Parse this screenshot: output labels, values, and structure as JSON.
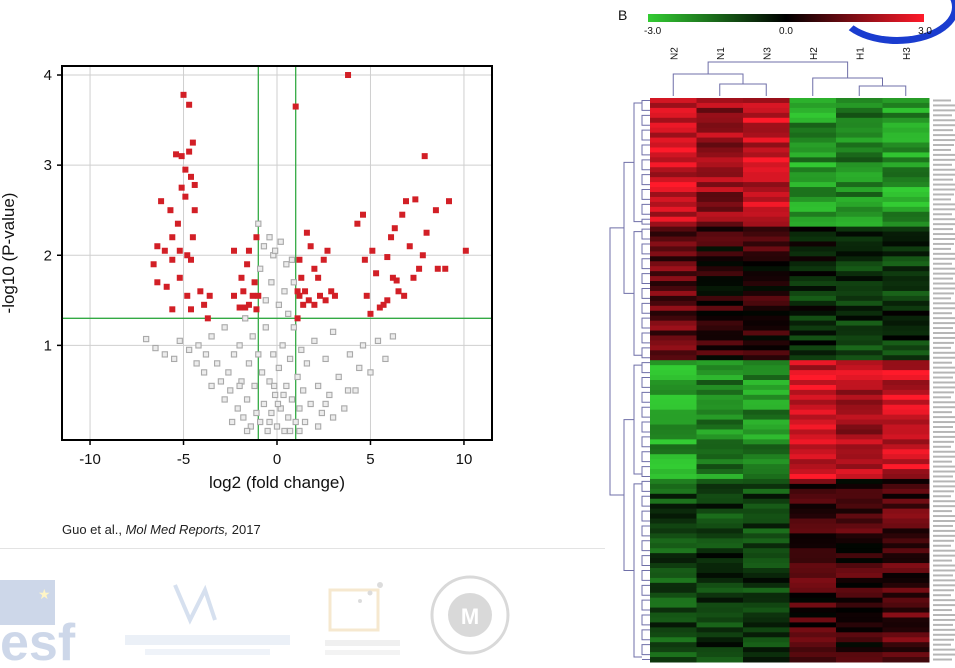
{
  "chart_data": [
    {
      "type": "scatter",
      "title": "",
      "xlabel": "log2 (fold change)",
      "ylabel": "-log10 (P-value)",
      "xlim": [
        -11.5,
        11.5
      ],
      "ylim": [
        -0.05,
        4.1
      ],
      "xticks": [
        -10,
        -5,
        0,
        5,
        10
      ],
      "yticks": [
        1,
        2,
        3,
        4
      ],
      "grid": true,
      "thresholds": {
        "log2fc": [
          -1,
          1
        ],
        "neg_log10_p": 1.3
      },
      "colors": {
        "significant": "#d21f26",
        "not_significant": "#a9a9a9",
        "threshold": "#33aa44"
      },
      "series": [
        {
          "points": [
            [
              -5,
              3.78
            ],
            [
              -4.7,
              3.67
            ],
            [
              -4.5,
              3.25
            ],
            [
              -4.7,
              3.15
            ],
            [
              -5.1,
              3.1
            ],
            [
              -5.4,
              3.12
            ],
            [
              -4.9,
              2.95
            ],
            [
              -4.6,
              2.87
            ],
            [
              -4.4,
              2.78
            ],
            [
              -5.1,
              2.75
            ],
            [
              -6.2,
              2.6
            ],
            [
              -5.7,
              2.5
            ],
            [
              -4.9,
              2.65
            ],
            [
              -4.4,
              2.5
            ],
            [
              -5.3,
              2.35
            ],
            [
              -5.6,
              2.2
            ],
            [
              -4.5,
              2.2
            ],
            [
              -6.4,
              2.1
            ],
            [
              -6.0,
              2.05
            ],
            [
              -5.2,
              2.05
            ],
            [
              -4.8,
              2.0
            ],
            [
              -6.6,
              1.9
            ],
            [
              -5.6,
              1.95
            ],
            [
              -4.6,
              1.95
            ],
            [
              -5.2,
              1.75
            ],
            [
              -6.4,
              1.7
            ],
            [
              -5.9,
              1.65
            ],
            [
              -4.1,
              1.6
            ],
            [
              -4.8,
              1.55
            ],
            [
              -3.6,
              1.55
            ],
            [
              -3.9,
              1.45
            ],
            [
              -5.6,
              1.4
            ],
            [
              -4.6,
              1.4
            ],
            [
              -3.7,
              1.3
            ],
            [
              -2.0,
              1.42
            ],
            [
              -1.7,
              1.42
            ],
            [
              -1.6,
              1.9
            ],
            [
              -1.9,
              1.75
            ],
            [
              -1.3,
              1.55
            ],
            [
              -1.5,
              1.45
            ],
            [
              -1.2,
              1.7
            ],
            [
              -1.1,
              2.2
            ],
            [
              -2.3,
              2.05
            ],
            [
              -1.5,
              2.05
            ],
            [
              -1.8,
              1.6
            ],
            [
              -2.3,
              1.55
            ],
            [
              -1.1,
              1.4
            ],
            [
              -1.0,
              1.55
            ],
            [
              1.0,
              3.65
            ],
            [
              1.1,
              1.3
            ],
            [
              1.2,
              1.55
            ],
            [
              1.3,
              1.75
            ],
            [
              1.6,
              2.25
            ],
            [
              1.8,
              2.1
            ],
            [
              2.0,
              1.85
            ],
            [
              2.2,
              1.75
            ],
            [
              2.5,
              1.95
            ],
            [
              2.7,
              2.05
            ],
            [
              2.9,
              1.6
            ],
            [
              3.1,
              1.55
            ],
            [
              1.5,
              1.6
            ],
            [
              1.7,
              1.5
            ],
            [
              2.0,
              1.45
            ],
            [
              1.4,
              1.45
            ],
            [
              2.3,
              1.55
            ],
            [
              2.6,
              1.5
            ],
            [
              1.2,
              1.95
            ],
            [
              1.1,
              1.6
            ],
            [
              3.8,
              4.0
            ],
            [
              4.6,
              2.45
            ],
            [
              4.3,
              2.35
            ],
            [
              4.7,
              1.95
            ],
            [
              5.1,
              2.05
            ],
            [
              4.8,
              1.55
            ],
            [
              5.5,
              1.42
            ],
            [
              5.0,
              1.35
            ],
            [
              5.7,
              1.45
            ],
            [
              5.3,
              1.8
            ],
            [
              6.4,
              1.72
            ],
            [
              5.9,
              1.98
            ],
            [
              6.1,
              2.2
            ],
            [
              6.3,
              2.3
            ],
            [
              6.9,
              2.6
            ],
            [
              6.7,
              2.45
            ],
            [
              7.4,
              2.62
            ],
            [
              7.9,
              3.1
            ],
            [
              8.0,
              2.25
            ],
            [
              8.5,
              2.5
            ],
            [
              9.2,
              2.6
            ],
            [
              10.1,
              2.05
            ],
            [
              9.0,
              1.85
            ],
            [
              7.1,
              2.1
            ],
            [
              7.6,
              1.85
            ],
            [
              6.8,
              1.55
            ],
            [
              6.5,
              1.6
            ],
            [
              7.3,
              1.75
            ],
            [
              8.6,
              1.85
            ],
            [
              7.8,
              2.0
            ],
            [
              5.9,
              1.5
            ],
            [
              6.2,
              1.75
            ]
          ]
        },
        {
          "points": [
            [
              -7.0,
              1.07
            ],
            [
              -6.5,
              0.97
            ],
            [
              -6.0,
              0.9
            ],
            [
              -5.5,
              0.85
            ],
            [
              -5.2,
              1.05
            ],
            [
              -4.7,
              0.95
            ],
            [
              -4.2,
              1.0
            ],
            [
              -3.8,
              0.9
            ],
            [
              -3.5,
              1.1
            ],
            [
              -3.2,
              0.8
            ],
            [
              -3.0,
              0.6
            ],
            [
              -2.8,
              1.2
            ],
            [
              -2.6,
              0.7
            ],
            [
              -2.5,
              0.5
            ],
            [
              -2.3,
              0.9
            ],
            [
              -2.1,
              0.3
            ],
            [
              -2.0,
              1.0
            ],
            [
              -1.9,
              0.6
            ],
            [
              -1.8,
              0.2
            ],
            [
              -1.7,
              1.3
            ],
            [
              -1.6,
              0.4
            ],
            [
              -1.5,
              0.8
            ],
            [
              -1.4,
              0.1
            ],
            [
              -1.3,
              1.1
            ],
            [
              -1.2,
              0.55
            ],
            [
              -1.1,
              0.25
            ],
            [
              -1.0,
              0.9
            ],
            [
              -0.9,
              0.15
            ],
            [
              -0.8,
              0.7
            ],
            [
              -0.7,
              0.35
            ],
            [
              -0.6,
              1.2
            ],
            [
              -0.5,
              0.05
            ],
            [
              -0.4,
              0.6
            ],
            [
              -0.3,
              0.25
            ],
            [
              -0.2,
              0.9
            ],
            [
              -0.1,
              0.45
            ],
            [
              0,
              0.1
            ],
            [
              0.1,
              0.75
            ],
            [
              0.2,
              0.3
            ],
            [
              0.3,
              1.0
            ],
            [
              0.4,
              0.05
            ],
            [
              0.5,
              0.55
            ],
            [
              0.6,
              0.2
            ],
            [
              0.7,
              0.85
            ],
            [
              0.8,
              0.4
            ],
            [
              0.9,
              1.2
            ],
            [
              1.0,
              0.15
            ],
            [
              1.1,
              0.65
            ],
            [
              1.2,
              0.3
            ],
            [
              1.3,
              0.95
            ],
            [
              1.4,
              0.5
            ],
            [
              1.5,
              0.15
            ],
            [
              1.6,
              0.8
            ],
            [
              1.8,
              0.35
            ],
            [
              2.0,
              1.05
            ],
            [
              2.2,
              0.55
            ],
            [
              2.4,
              0.25
            ],
            [
              2.6,
              0.85
            ],
            [
              2.8,
              0.45
            ],
            [
              3.0,
              1.15
            ],
            [
              3.3,
              0.65
            ],
            [
              3.6,
              0.3
            ],
            [
              3.9,
              0.9
            ],
            [
              4.2,
              0.5
            ],
            [
              4.6,
              1.0
            ],
            [
              5.0,
              0.7
            ],
            [
              5.4,
              1.05
            ],
            [
              5.8,
              0.85
            ],
            [
              6.2,
              1.1
            ],
            [
              -0.7,
              2.1
            ],
            [
              -0.4,
              2.2
            ],
            [
              -0.2,
              2.0
            ],
            [
              0.2,
              2.15
            ],
            [
              0.5,
              1.9
            ],
            [
              -1.0,
              2.35
            ],
            [
              0.8,
              1.95
            ],
            [
              -0.3,
              1.7
            ],
            [
              0.4,
              1.6
            ],
            [
              -0.6,
              1.5
            ],
            [
              0.1,
              1.45
            ],
            [
              0.6,
              1.35
            ],
            [
              -0.9,
              1.85
            ],
            [
              0.9,
              1.7
            ],
            [
              -0.1,
              2.05
            ],
            [
              -2.8,
              0.4
            ],
            [
              -2.4,
              0.15
            ],
            [
              -2.0,
              0.55
            ],
            [
              -1.6,
              0.05
            ],
            [
              2.2,
              0.1
            ],
            [
              2.6,
              0.35
            ],
            [
              3.0,
              0.2
            ],
            [
              1.2,
              0.05
            ],
            [
              -3.5,
              0.55
            ],
            [
              -3.9,
              0.7
            ],
            [
              -4.3,
              0.8
            ],
            [
              3.8,
              0.5
            ],
            [
              4.4,
              0.75
            ],
            [
              0.7,
              0.05
            ],
            [
              -0.4,
              0.15
            ],
            [
              0.05,
              0.35
            ],
            [
              -0.15,
              0.55
            ],
            [
              0.35,
              0.45
            ]
          ]
        }
      ]
    },
    {
      "type": "heatmap",
      "panel_label": "B",
      "color_scale": {
        "min": -3.0,
        "mid": 0.0,
        "max": 3.0,
        "labels": [
          "-3.0",
          "0.0",
          "3.0"
        ],
        "colors": [
          "#33cc33",
          "#000000",
          "#ff1a2a"
        ]
      },
      "columns": [
        "N2",
        "N1",
        "N3",
        "H2",
        "H1",
        "H3"
      ],
      "row_blocks": [
        {
          "rows": 26,
          "base": [
            2.5,
            1.8,
            2.4,
            -2.2,
            -1.9,
            -2.3
          ]
        },
        {
          "rows": 27,
          "base": [
            1.1,
            0.4,
            0.5,
            -0.6,
            -0.8,
            -0.7
          ]
        },
        {
          "rows": 24,
          "base": [
            -2.3,
            -1.9,
            -2.0,
            2.5,
            2.1,
            2.4
          ]
        },
        {
          "rows": 37,
          "base": [
            -1.1,
            -0.8,
            -0.9,
            0.7,
            0.6,
            0.9
          ]
        }
      ]
    }
  ],
  "citation": {
    "authors": "Guo et al., ",
    "journal": "Mol Med Reports,",
    "year": " 2017"
  }
}
